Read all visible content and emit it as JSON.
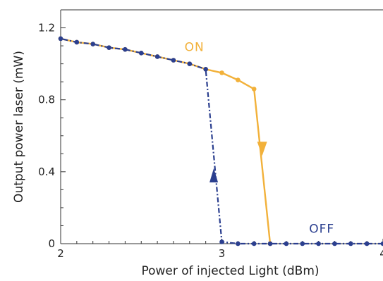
{
  "chart_data": {
    "type": "line",
    "xlabel": "Power of injected Light (dBm)",
    "ylabel": "Output power laser (mW)",
    "xlim": [
      2,
      4
    ],
    "ylim": [
      0,
      1.3
    ],
    "x_ticks": [
      2,
      3,
      4
    ],
    "x_tick_labels": [
      "2",
      "3",
      "4"
    ],
    "y_ticks": [
      0,
      0.4,
      0.8,
      1.2
    ],
    "y_tick_labels": [
      "0",
      "0.4",
      "0.8",
      "1.2"
    ],
    "grid": false,
    "series": [
      {
        "name": "ON",
        "color": "#f2b13a",
        "style": "solid",
        "direction": "increasing",
        "x": [
          2.0,
          2.1,
          2.2,
          2.3,
          2.4,
          2.5,
          2.6,
          2.7,
          2.8,
          2.9,
          3.0,
          3.1,
          3.2,
          3.3
        ],
        "y": [
          1.14,
          1.12,
          1.11,
          1.09,
          1.08,
          1.06,
          1.04,
          1.02,
          1.0,
          0.97,
          0.95,
          0.91,
          0.86,
          0.0
        ]
      },
      {
        "name": "OFF",
        "color": "#2b3f8f",
        "style": "dash-dot",
        "direction": "decreasing",
        "x": [
          4.0,
          3.9,
          3.8,
          3.7,
          3.6,
          3.5,
          3.4,
          3.3,
          3.2,
          3.1,
          3.0,
          2.9,
          2.8,
          2.7,
          2.6,
          2.5,
          2.4,
          2.3,
          2.2,
          2.1,
          2.0
        ],
        "y": [
          0.0,
          0.0,
          0.0,
          0.0,
          0.0,
          0.0,
          0.0,
          0.0,
          0.0,
          0.0,
          0.01,
          0.97,
          1.0,
          1.02,
          1.04,
          1.06,
          1.08,
          1.09,
          1.11,
          1.12,
          1.14
        ]
      }
    ],
    "annotations": [
      {
        "text": "ON",
        "x": 2.83,
        "y": 1.07,
        "color": "#f2b13a"
      },
      {
        "text": "OFF",
        "x": 3.62,
        "y": 0.06,
        "color": "#2b3f8f"
      }
    ],
    "arrows": [
      {
        "series": "ON",
        "x": 3.25,
        "y": 0.52,
        "direction": "down"
      },
      {
        "series": "OFF",
        "x": 2.95,
        "y": 0.38,
        "direction": "up"
      }
    ]
  }
}
